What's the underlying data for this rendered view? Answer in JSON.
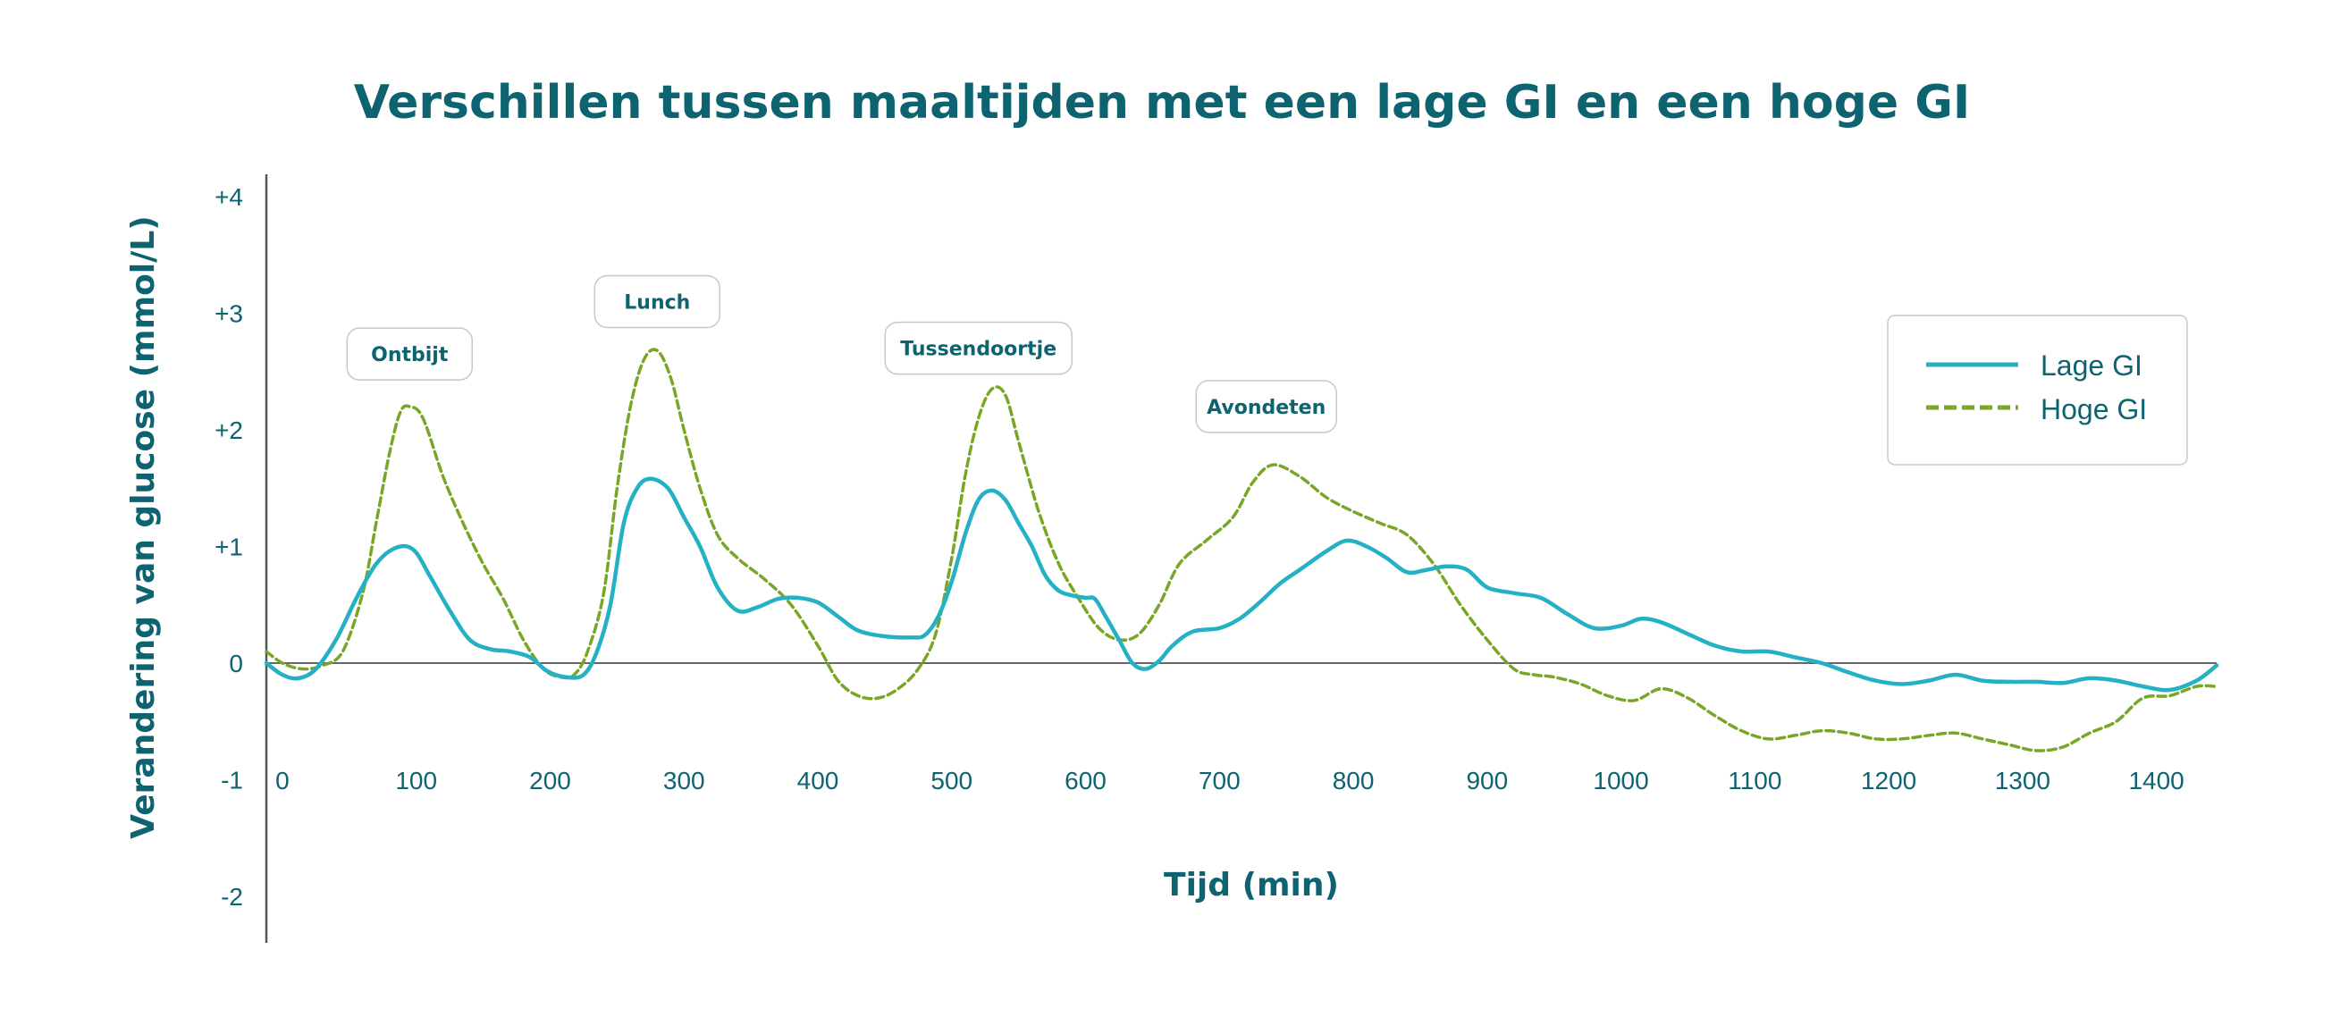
{
  "chart_data": {
    "type": "line",
    "title": "Verschillen tussen maaltijden met een lage GI en een hoge GI",
    "xlabel": "Tijd (min)",
    "ylabel": "Verandering van glucose (mmol/L)",
    "xlim": [
      -12,
      1445
    ],
    "ylim": [
      -2,
      4
    ],
    "xticks": [
      0,
      100,
      200,
      300,
      400,
      500,
      600,
      700,
      800,
      900,
      1000,
      1100,
      1200,
      1300,
      1400
    ],
    "yticks": [
      {
        "value": 4,
        "label": "+4"
      },
      {
        "value": 3,
        "label": "+3"
      },
      {
        "value": 2,
        "label": "+2"
      },
      {
        "value": 1,
        "label": "+1"
      },
      {
        "value": 0,
        "label": "0"
      },
      {
        "value": -1,
        "label": "-1"
      },
      {
        "value": -2,
        "label": "-2"
      }
    ],
    "grid": false,
    "legend_position": "top-right",
    "series": [
      {
        "name": "Lage GI",
        "color": "#24b1c3",
        "style": "solid",
        "x": [
          -12,
          0,
          12,
          25,
          40,
          55,
          70,
          85,
          98,
          110,
          125,
          140,
          155,
          170,
          185,
          198,
          212,
          225,
          235,
          245,
          255,
          265,
          275,
          288,
          300,
          312,
          325,
          340,
          355,
          370,
          385,
          400,
          415,
          430,
          450,
          470,
          480,
          490,
          500,
          510,
          520,
          530,
          540,
          550,
          560,
          570,
          580,
          590,
          600,
          607,
          615,
          625,
          635,
          645,
          655,
          665,
          680,
          700,
          715,
          730,
          745,
          760,
          780,
          795,
          810,
          825,
          840,
          855,
          870,
          885,
          900,
          920,
          940,
          960,
          980,
          1000,
          1015,
          1030,
          1050,
          1070,
          1090,
          1110,
          1130,
          1150,
          1170,
          1190,
          1210,
          1230,
          1250,
          1270,
          1290,
          1310,
          1330,
          1350,
          1370,
          1390,
          1410,
          1430,
          1445
        ],
        "values": [
          0.0,
          -0.1,
          -0.13,
          -0.05,
          0.2,
          0.55,
          0.85,
          0.99,
          0.97,
          0.75,
          0.45,
          0.2,
          0.12,
          0.1,
          0.05,
          -0.07,
          -0.12,
          -0.1,
          0.1,
          0.5,
          1.2,
          1.5,
          1.58,
          1.5,
          1.25,
          1.0,
          0.65,
          0.45,
          0.48,
          0.55,
          0.56,
          0.52,
          0.4,
          0.28,
          0.23,
          0.22,
          0.24,
          0.4,
          0.7,
          1.1,
          1.4,
          1.48,
          1.4,
          1.2,
          1.0,
          0.75,
          0.62,
          0.58,
          0.56,
          0.55,
          0.4,
          0.2,
          0.0,
          -0.05,
          0.02,
          0.15,
          0.27,
          0.3,
          0.38,
          0.52,
          0.68,
          0.8,
          0.96,
          1.05,
          1.0,
          0.9,
          0.78,
          0.8,
          0.83,
          0.8,
          0.65,
          0.6,
          0.56,
          0.42,
          0.3,
          0.32,
          0.38,
          0.35,
          0.25,
          0.15,
          0.1,
          0.1,
          0.05,
          0.0,
          -0.08,
          -0.15,
          -0.18,
          -0.15,
          -0.1,
          -0.15,
          -0.16,
          -0.16,
          -0.17,
          -0.13,
          -0.15,
          -0.2,
          -0.23,
          -0.15,
          -0.02
        ]
      },
      {
        "name": "Hoge GI",
        "color": "#7aa628",
        "style": "dashed",
        "x": [
          -12,
          0,
          15,
          30,
          45,
          60,
          70,
          80,
          88,
          95,
          105,
          120,
          135,
          150,
          165,
          180,
          195,
          208,
          218,
          228,
          240,
          250,
          260,
          270,
          280,
          290,
          300,
          312,
          325,
          340,
          360,
          380,
          400,
          415,
          430,
          445,
          460,
          475,
          488,
          500,
          510,
          520,
          530,
          540,
          550,
          565,
          580,
          595,
          610,
          625,
          640,
          655,
          670,
          690,
          710,
          725,
          740,
          760,
          780,
          800,
          820,
          840,
          860,
          880,
          900,
          920,
          935,
          950,
          970,
          990,
          1010,
          1030,
          1050,
          1070,
          1090,
          1110,
          1130,
          1150,
          1170,
          1190,
          1210,
          1230,
          1250,
          1270,
          1290,
          1310,
          1330,
          1350,
          1370,
          1390,
          1410,
          1430,
          1445
        ],
        "values": [
          0.1,
          0.0,
          -0.05,
          -0.02,
          0.1,
          0.6,
          1.2,
          1.8,
          2.15,
          2.2,
          2.1,
          1.6,
          1.2,
          0.85,
          0.55,
          0.2,
          -0.05,
          -0.12,
          -0.1,
          0.1,
          0.6,
          1.5,
          2.2,
          2.6,
          2.68,
          2.45,
          2.0,
          1.5,
          1.1,
          0.9,
          0.72,
          0.5,
          0.15,
          -0.15,
          -0.28,
          -0.3,
          -0.22,
          -0.05,
          0.25,
          0.9,
          1.6,
          2.1,
          2.35,
          2.3,
          1.9,
          1.3,
          0.85,
          0.55,
          0.3,
          0.2,
          0.25,
          0.5,
          0.85,
          1.05,
          1.25,
          1.55,
          1.7,
          1.6,
          1.42,
          1.3,
          1.2,
          1.1,
          0.85,
          0.5,
          0.2,
          -0.05,
          -0.1,
          -0.12,
          -0.18,
          -0.28,
          -0.32,
          -0.22,
          -0.3,
          -0.45,
          -0.58,
          -0.65,
          -0.62,
          -0.58,
          -0.6,
          -0.65,
          -0.65,
          -0.62,
          -0.6,
          -0.65,
          -0.7,
          -0.75,
          -0.72,
          -0.6,
          -0.5,
          -0.3,
          -0.28,
          -0.2,
          -0.2
        ]
      }
    ],
    "annotations": [
      {
        "label": "Ontbijt",
        "x": 95,
        "y": 2.65
      },
      {
        "label": "Lunch",
        "x": 280,
        "y": 3.1
      },
      {
        "label": "Tussendoortje",
        "x": 520,
        "y": 2.7
      },
      {
        "label": "Avondeten",
        "x": 735,
        "y": 2.2
      }
    ]
  }
}
